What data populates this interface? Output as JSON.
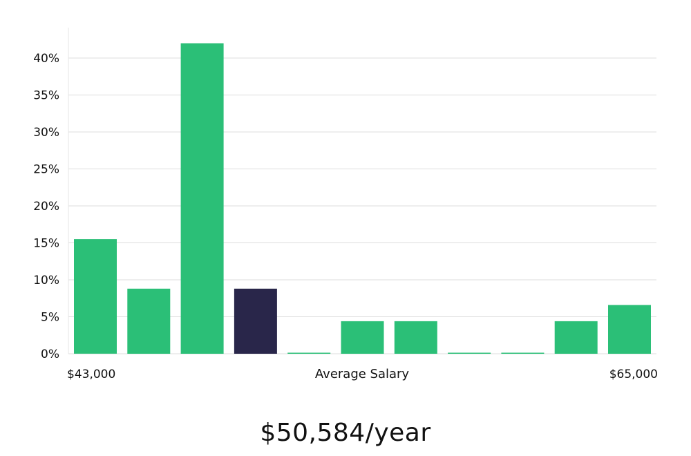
{
  "chart_data": {
    "type": "bar",
    "bins": 11,
    "values": [
      15.5,
      8.8,
      42.0,
      8.8,
      0.1,
      4.4,
      4.4,
      0.1,
      0.1,
      4.4,
      6.6
    ],
    "highlight_index": 3,
    "ylim": [
      0,
      44
    ],
    "yticks": [
      0,
      5,
      10,
      15,
      20,
      25,
      30,
      35,
      40
    ],
    "y_tick_suffix": "%",
    "x_min_label": "$43,000",
    "x_max_label": "$65,000",
    "xlabel": "Average Salary",
    "grid": true,
    "colors": {
      "bar": "#2bbf77",
      "highlight": "#29264a",
      "grid": "#dcdcdc"
    }
  },
  "summary": {
    "salary_text": "$50,584/year"
  }
}
